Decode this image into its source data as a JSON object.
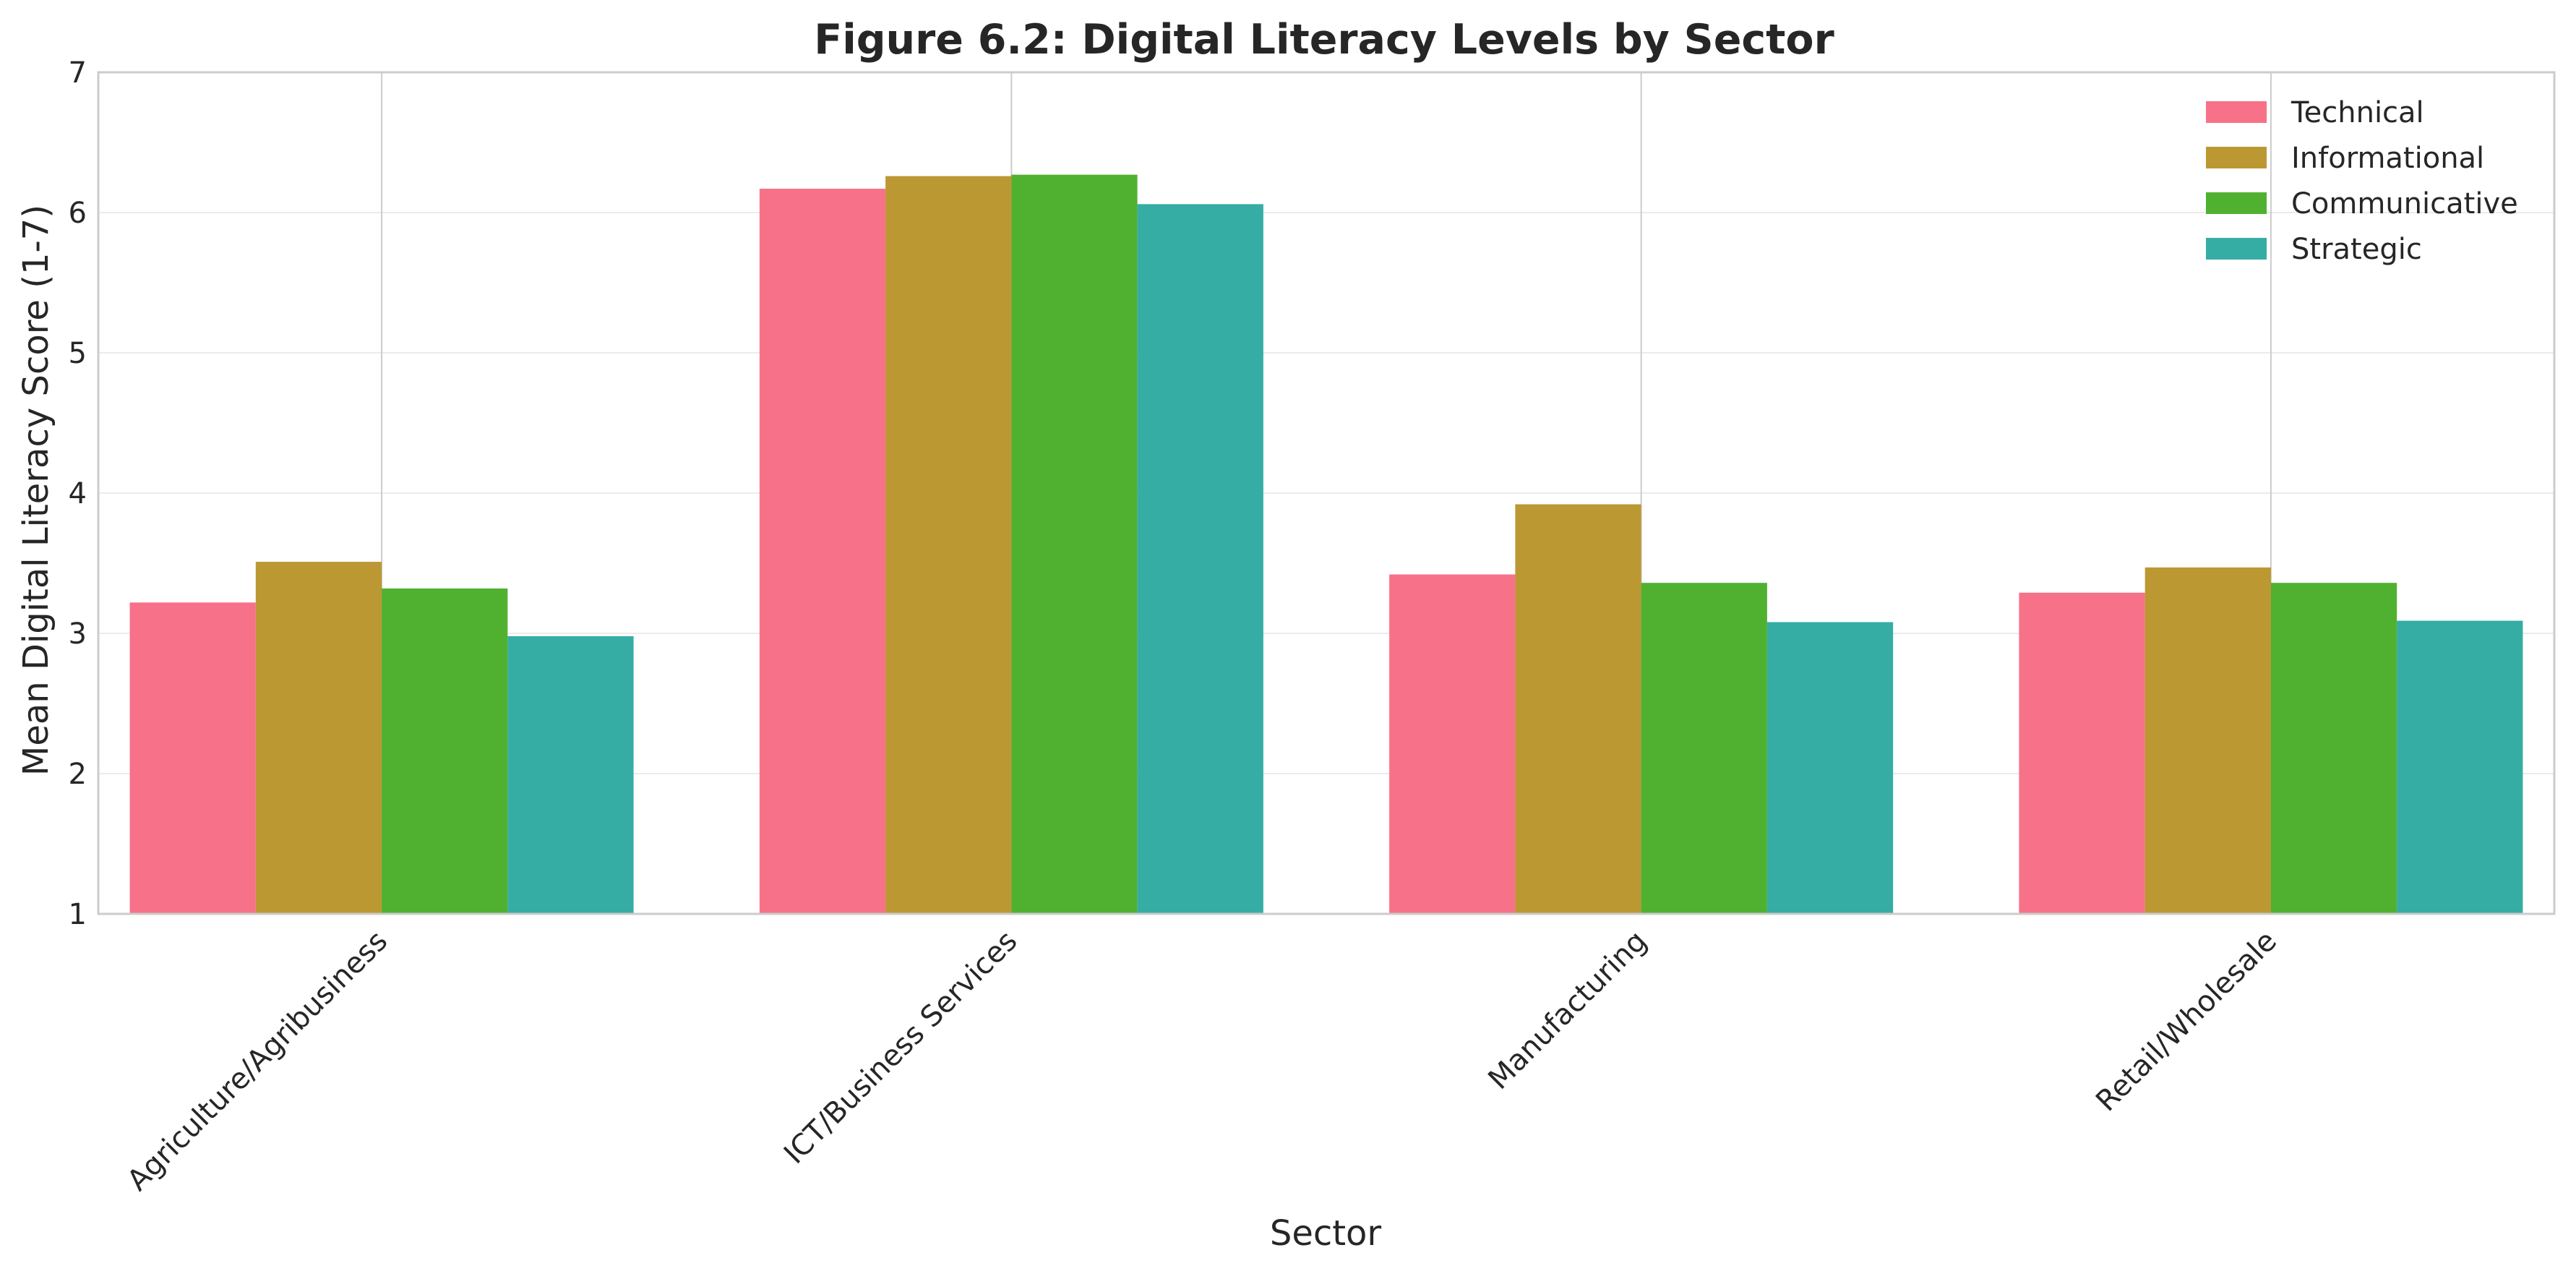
{
  "chart_data": {
    "type": "bar",
    "title": "Figure 6.2: Digital Literacy Levels by Sector",
    "xlabel": "Sector",
    "ylabel": "Mean Digital Literacy Score (1-7)",
    "ylim": [
      1,
      7
    ],
    "yticks": [
      "1",
      "2",
      "3",
      "4",
      "5",
      "6",
      "7"
    ],
    "grid": true,
    "legend_position": "top-right",
    "categories": [
      "Agriculture/Agribusiness",
      "ICT/Business Services",
      "Manufacturing",
      "Retail/Wholesale"
    ],
    "series": [
      {
        "name": "Technical",
        "color": "#f77189",
        "values": [
          3.22,
          6.17,
          3.42,
          3.29
        ]
      },
      {
        "name": "Informational",
        "color": "#bb9832",
        "values": [
          3.51,
          6.26,
          3.92,
          3.47
        ]
      },
      {
        "name": "Communicative",
        "color": "#50b131",
        "values": [
          3.32,
          6.27,
          3.36,
          3.36
        ]
      },
      {
        "name": "Strategic",
        "color": "#36ada4",
        "values": [
          2.98,
          6.06,
          3.08,
          3.09
        ]
      }
    ]
  }
}
